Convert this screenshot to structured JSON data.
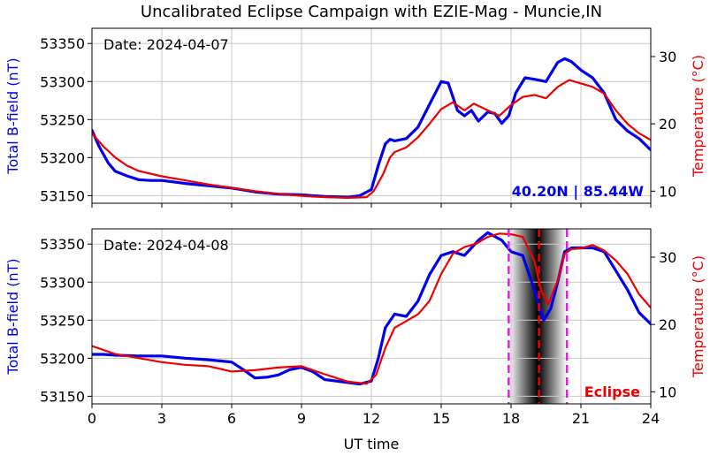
{
  "title": "Uncalibrated Eclipse Campaign with EZIE-Mag - Muncie,IN",
  "colors": {
    "bfield": "#0000ee",
    "temperature": "#ee0000",
    "eclipse_lines": "#dd22dd",
    "totality_line": "#ee0000",
    "grid": "#c8c8c8"
  },
  "chart_data": [
    {
      "type": "line",
      "panel": "top",
      "date_label": "Date: 2024-04-07",
      "annotation": "40.20N | 85.44W",
      "xlabel": "",
      "ylabel": "Total B-field (nT)",
      "ylabel_right": "Temperature (°C)",
      "xlim": [
        0,
        24
      ],
      "ylim": [
        53140,
        53370
      ],
      "ylim_right": [
        8.2,
        34.2
      ],
      "yticks": [
        53150,
        53200,
        53250,
        53300,
        53350
      ],
      "yticks_right": [
        10,
        20,
        30
      ],
      "grid": true,
      "series": [
        {
          "name": "Total B-field (nT)",
          "axis": "left",
          "x": [
            0,
            0.3,
            0.7,
            1,
            1.5,
            2,
            2.5,
            3,
            4,
            5,
            6,
            7,
            8,
            9,
            10,
            11,
            11.5,
            12,
            12.3,
            12.6,
            12.8,
            13,
            13.5,
            14,
            14.5,
            15,
            15.3,
            15.7,
            16,
            16.3,
            16.6,
            17,
            17.3,
            17.6,
            17.9,
            18.2,
            18.6,
            19,
            19.5,
            20,
            20.3,
            20.6,
            21,
            21.5,
            22,
            22.5,
            23,
            23.5,
            24
          ],
          "y": [
            53236,
            53215,
            53193,
            53182,
            53176,
            53171,
            53170,
            53170,
            53166,
            53163,
            53160,
            53155,
            53152,
            53151,
            53149,
            53148,
            53150,
            53158,
            53190,
            53218,
            53224,
            53222,
            53225,
            53240,
            53270,
            53300,
            53298,
            53262,
            53255,
            53262,
            53248,
            53260,
            53258,
            53245,
            53255,
            53285,
            53305,
            53303,
            53300,
            53325,
            53330,
            53326,
            53315,
            53305,
            53285,
            53250,
            53235,
            53225,
            53210
          ]
        },
        {
          "name": "Temperature (°C)",
          "axis": "right",
          "x": [
            0,
            0.5,
            1,
            1.5,
            2,
            3,
            4,
            5,
            6,
            7,
            8,
            9,
            10,
            11,
            11.8,
            12.1,
            12.5,
            12.8,
            13,
            13.5,
            14,
            14.5,
            15,
            15.5,
            16,
            16.4,
            17,
            17.5,
            18,
            18.5,
            19,
            19.5,
            20,
            20.5,
            21,
            21.5,
            22,
            22.5,
            23,
            23.5,
            24
          ],
          "y": [
            18.6,
            16.6,
            15.0,
            13.8,
            13.0,
            12.2,
            11.6,
            11.0,
            10.5,
            10.0,
            9.6,
            9.3,
            9.1,
            9.0,
            9.1,
            10.0,
            12.5,
            15.0,
            15.8,
            16.5,
            18.0,
            20.0,
            22.2,
            23.2,
            22.0,
            23.0,
            22.0,
            21.2,
            22.8,
            24.0,
            24.3,
            23.8,
            25.5,
            26.5,
            26.0,
            25.5,
            24.5,
            22.0,
            20.0,
            18.6,
            17.6
          ]
        }
      ]
    },
    {
      "type": "line",
      "panel": "bottom",
      "date_label": "Date: 2024-04-08",
      "annotation": "Eclipse",
      "xlabel": "UT time",
      "ylabel": "Total B-field (nT)",
      "ylabel_right": "Temperature (°C)",
      "xlim": [
        0,
        24
      ],
      "ylim": [
        53140,
        53370
      ],
      "ylim_right": [
        8.2,
        34.2
      ],
      "xticks": [
        0,
        3,
        6,
        9,
        12,
        15,
        18,
        21,
        24
      ],
      "yticks": [
        53150,
        53200,
        53250,
        53300,
        53350
      ],
      "yticks_right": [
        10,
        20,
        30
      ],
      "grid": true,
      "eclipse_start": 17.9,
      "totality": 19.2,
      "eclipse_end": 20.4,
      "series": [
        {
          "name": "Total B-field (nT)",
          "axis": "left",
          "x": [
            0,
            0.5,
            1,
            2,
            3,
            4,
            5,
            6,
            6.5,
            7,
            7.5,
            8,
            8.5,
            9,
            9.5,
            10,
            10.5,
            11,
            11.5,
            12,
            12.3,
            12.6,
            13,
            13.5,
            14,
            14.5,
            15,
            15.5,
            16,
            16.3,
            16.6,
            17,
            17.3,
            17.6,
            18,
            18.5,
            19,
            19.4,
            19.7,
            20,
            20.3,
            20.6,
            21,
            21.5,
            22,
            22.5,
            23,
            23.5,
            24
          ],
          "y": [
            53205,
            53205,
            53204,
            53203,
            53203,
            53200,
            53198,
            53195,
            53185,
            53174,
            53175,
            53178,
            53185,
            53188,
            53182,
            53172,
            53170,
            53168,
            53166,
            53170,
            53200,
            53240,
            53258,
            53255,
            53275,
            53310,
            53335,
            53340,
            53335,
            53345,
            53355,
            53365,
            53360,
            53355,
            53340,
            53335,
            53290,
            53250,
            53265,
            53300,
            53340,
            53345,
            53345,
            53345,
            53340,
            53315,
            53290,
            53260,
            53245
          ]
        },
        {
          "name": "Temperature (°C)",
          "axis": "right",
          "x": [
            0,
            1,
            2,
            3,
            4,
            5,
            6,
            7,
            8,
            9,
            10,
            11,
            11.8,
            12.2,
            12.6,
            13,
            13.5,
            14,
            14.5,
            15,
            15.5,
            16,
            16.5,
            17,
            17.5,
            18,
            18.5,
            19,
            19.3,
            19.6,
            20,
            20.3,
            20.6,
            21,
            21.5,
            22,
            22.5,
            23,
            23.5,
            24
          ],
          "y": [
            16.8,
            15.6,
            15.0,
            14.4,
            14.0,
            13.8,
            13.0,
            13.2,
            13.6,
            13.8,
            12.6,
            11.5,
            11.2,
            12.5,
            16.5,
            19.5,
            20.5,
            21.5,
            23.5,
            27.5,
            30.5,
            31.5,
            32.0,
            33.0,
            33.5,
            33.4,
            33.0,
            29.5,
            25.0,
            23.0,
            26.5,
            30.5,
            31.2,
            31.3,
            31.8,
            31.0,
            29.5,
            27.5,
            24.5,
            22.5
          ]
        }
      ]
    }
  ]
}
